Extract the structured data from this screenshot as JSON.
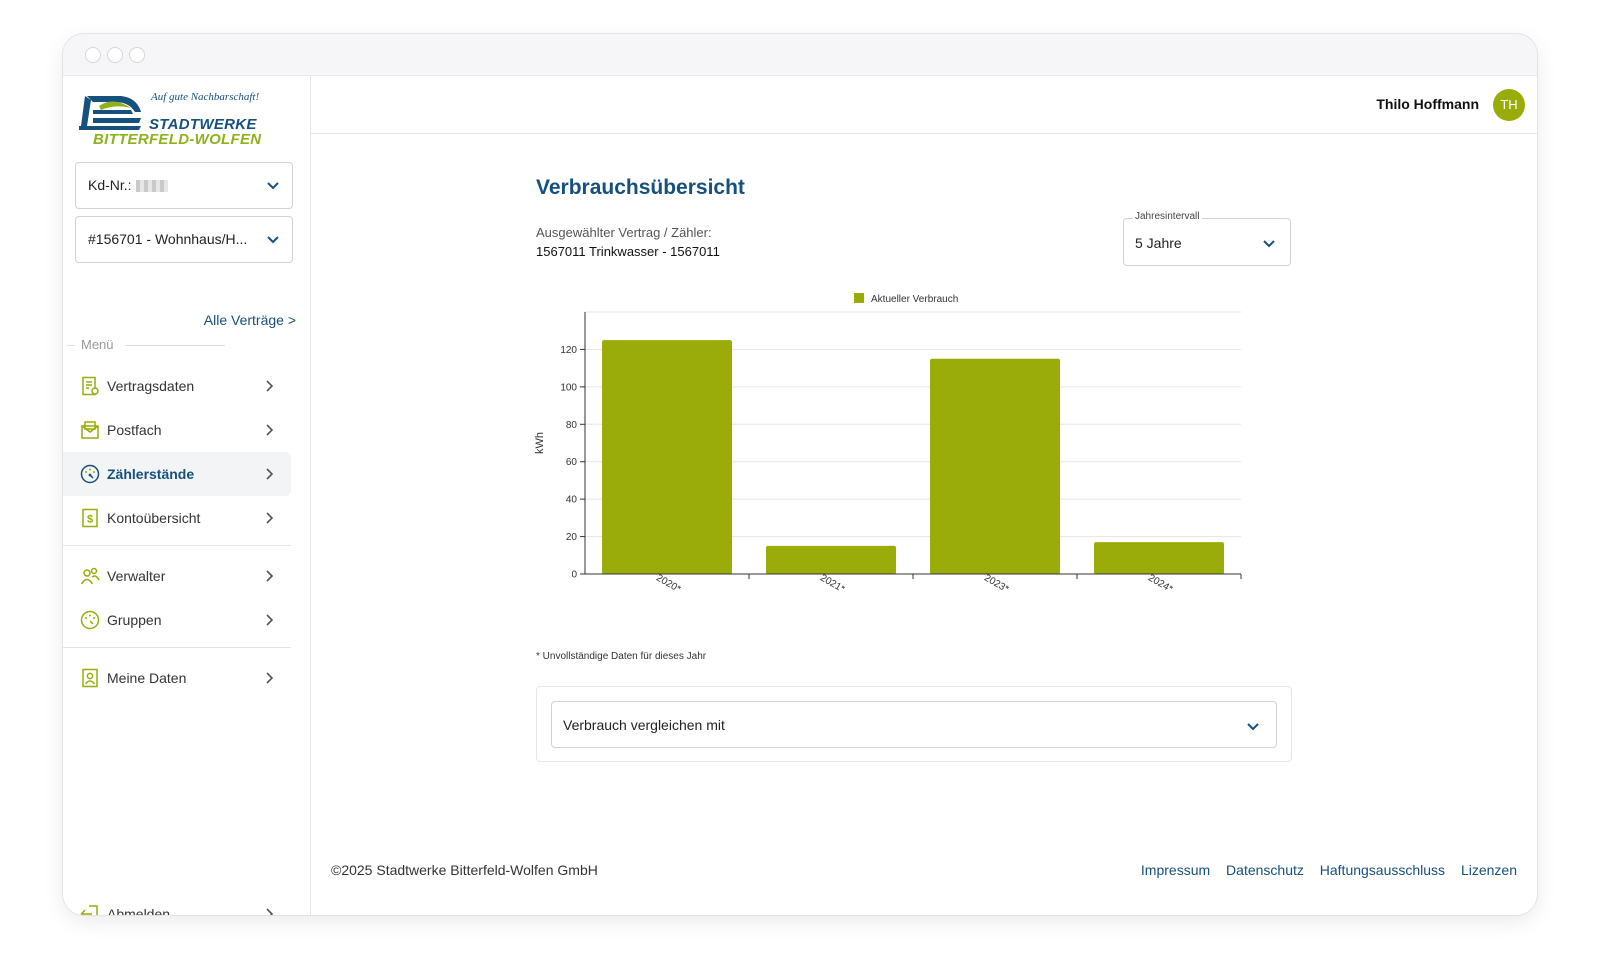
{
  "brand": {
    "tagline": "Auf gute Nachbarschaft!",
    "name_line1": "STADTWERKE",
    "name_line2": "BITTERFELD-WOLFEN",
    "primary_color": "#16507d",
    "accent_color": "#99ac0a"
  },
  "sidebar": {
    "customer_select": {
      "label": "Kd-Nr.:",
      "value_masked": true,
      "icon": "chevron-down-icon"
    },
    "contract_select": {
      "value": "#156701 - Wohnhaus/H...",
      "icon": "chevron-down-icon"
    },
    "all_contracts_link": "Alle Verträge >",
    "menu_label": "Menü",
    "items": [
      {
        "label": "Vertragsdaten",
        "icon": "contract-document-icon",
        "active": false
      },
      {
        "label": "Postfach",
        "icon": "mailbox-icon",
        "active": false
      },
      {
        "label": "Zählerstände",
        "icon": "meter-gauge-icon",
        "active": true
      },
      {
        "label": "Kontoübersicht",
        "icon": "account-dollar-icon",
        "active": false
      },
      {
        "label": "Verwalter",
        "icon": "people-icon",
        "active": false
      },
      {
        "label": "Gruppen",
        "icon": "groups-gauge-icon",
        "active": false
      },
      {
        "label": "Meine Daten",
        "icon": "user-profile-icon",
        "active": false
      }
    ],
    "logout": {
      "label": "Abmelden",
      "icon": "logout-icon"
    }
  },
  "header": {
    "user_name": "Thilo Hoffmann",
    "avatar_initials": "TH"
  },
  "main": {
    "title": "Verbrauchsübersicht",
    "contract_label": "Ausgewählter Vertrag / Zähler:",
    "contract_value": "1567011 Trinkwasser - 1567011",
    "interval": {
      "label": "Jahresintervall",
      "value": "5 Jahre"
    },
    "footnote": "* Unvollständige Daten für dieses Jahr",
    "compare_select": "Verbrauch vergleichen mit"
  },
  "chart_data": {
    "type": "bar",
    "categories": [
      "2020*",
      "2021*",
      "2023*",
      "2024*"
    ],
    "series": [
      {
        "name": "Aktueller Verbrauch",
        "values": [
          125,
          15,
          115,
          17
        ],
        "color": "#99ac0a"
      }
    ],
    "ylabel": "kWh",
    "xlabel": "",
    "ylim": [
      0,
      140
    ],
    "yticks": [
      0,
      20,
      40,
      60,
      80,
      100,
      120
    ],
    "grid": true,
    "legend": "top-center"
  },
  "footer": {
    "copyright": "©2025 Stadtwerke Bitterfeld-Wolfen GmbH",
    "links": [
      "Impressum",
      "Datenschutz",
      "Haftungsausschluss",
      "Lizenzen"
    ]
  }
}
